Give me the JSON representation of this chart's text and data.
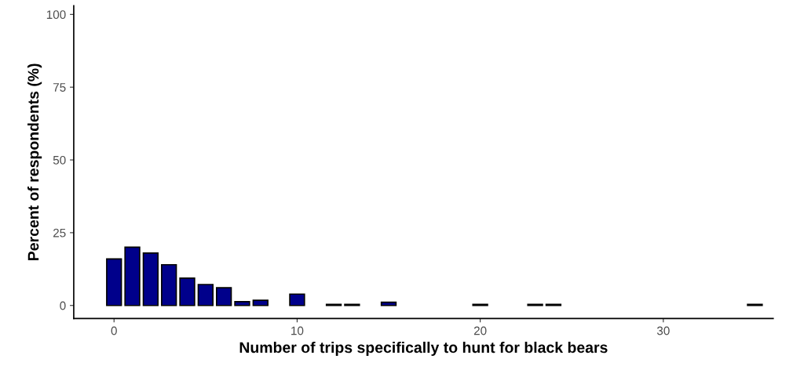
{
  "chart_data": {
    "type": "bar",
    "xlabel": "Number of trips specifically to hunt for black bears",
    "ylabel": "Percent of respondents (%)",
    "x": [
      0,
      1,
      2,
      3,
      4,
      5,
      6,
      7,
      8,
      10,
      12,
      13,
      15,
      20,
      23,
      24,
      35
    ],
    "values": [
      16,
      20,
      18,
      14,
      9.4,
      7.2,
      6.1,
      1.3,
      1.8,
      3.9,
      0.4,
      0.4,
      1.1,
      0.4,
      0.4,
      0.4,
      0.4
    ],
    "color": "#00008b",
    "xlim": [
      -2.2,
      36
    ],
    "xticks": [
      0,
      10,
      20,
      30
    ],
    "ylim": [
      -4.5,
      103
    ],
    "yticks": [
      0,
      25,
      50,
      75,
      100
    ],
    "grid": false,
    "legend": false
  }
}
